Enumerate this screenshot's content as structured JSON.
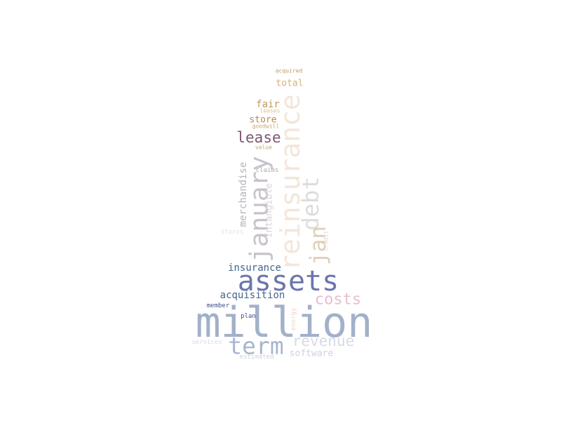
{
  "words": [
    {
      "text": "million",
      "weight": 60,
      "color": "#a2b1c9",
      "rotation": 0
    },
    {
      "text": "assets",
      "weight": 40,
      "color": "#6b75ad",
      "rotation": 0
    },
    {
      "text": "reinsurance",
      "weight": 38,
      "color": "#f3e6da",
      "rotation": -90
    },
    {
      "text": "january",
      "weight": 36,
      "color": "#c8c2cc",
      "rotation": -90
    },
    {
      "text": "term",
      "weight": 33,
      "color": "#a6b6ce",
      "rotation": 0
    },
    {
      "text": "debt",
      "weight": 32,
      "color": "#dcdcde",
      "rotation": -90
    },
    {
      "text": "jan",
      "weight": 31,
      "color": "#e0cdb8",
      "rotation": -90
    },
    {
      "text": "revenue",
      "weight": 21,
      "color": "#d8dbe7",
      "rotation": 0
    },
    {
      "text": "costs",
      "weight": 22,
      "color": "#e7bfcd",
      "rotation": 0
    },
    {
      "text": "lease",
      "weight": 21,
      "color": "#7d566f",
      "rotation": 0
    },
    {
      "text": "merchandise",
      "weight": 14,
      "color": "#b7b0b9",
      "rotation": -90
    },
    {
      "text": "insurance",
      "weight": 14,
      "color": "#44648c",
      "rotation": 0
    },
    {
      "text": "acquisition",
      "weight": 14,
      "color": "#44648c",
      "rotation": 0
    },
    {
      "text": "intangible",
      "weight": 13,
      "color": "#dad2da",
      "rotation": -90
    },
    {
      "text": "software",
      "weight": 13,
      "color": "#cdd2e0",
      "rotation": 0
    },
    {
      "text": "fair",
      "weight": 14,
      "color": "#c49a5a",
      "rotation": 0
    },
    {
      "text": "store",
      "weight": 13,
      "color": "#b9894d",
      "rotation": 0
    },
    {
      "text": "total",
      "weight": 13,
      "color": "#d8b274",
      "rotation": 0
    },
    {
      "text": "energy",
      "weight": 9,
      "color": "#efd5c9",
      "rotation": -90
    },
    {
      "text": "credit",
      "weight": 8,
      "color": "#ead7c8",
      "rotation": -90
    },
    {
      "text": "services",
      "weight": 9,
      "color": "#d4d8e2",
      "rotation": 0
    },
    {
      "text": "estimated",
      "weight": 9,
      "color": "#ccd1de",
      "rotation": 0
    },
    {
      "text": "stores",
      "weight": 9,
      "color": "#dfe2ea",
      "rotation": 0
    },
    {
      "text": "claims",
      "weight": 9,
      "color": "#a9a9ad",
      "rotation": 0
    },
    {
      "text": "member",
      "weight": 9,
      "color": "#3f4f86",
      "rotation": 0
    },
    {
      "text": "plan",
      "weight": 9,
      "color": "#3f4f86",
      "rotation": 0
    },
    {
      "text": "value",
      "weight": 8,
      "color": "#c6a37d",
      "rotation": 0
    },
    {
      "text": "goodwill",
      "weight": 8,
      "color": "#c9a56f",
      "rotation": 0
    },
    {
      "text": "leases",
      "weight": 8,
      "color": "#dcbf94",
      "rotation": 0
    },
    {
      "text": "acquired",
      "weight": 8,
      "color": "#c49a5a",
      "rotation": 0
    }
  ]
}
